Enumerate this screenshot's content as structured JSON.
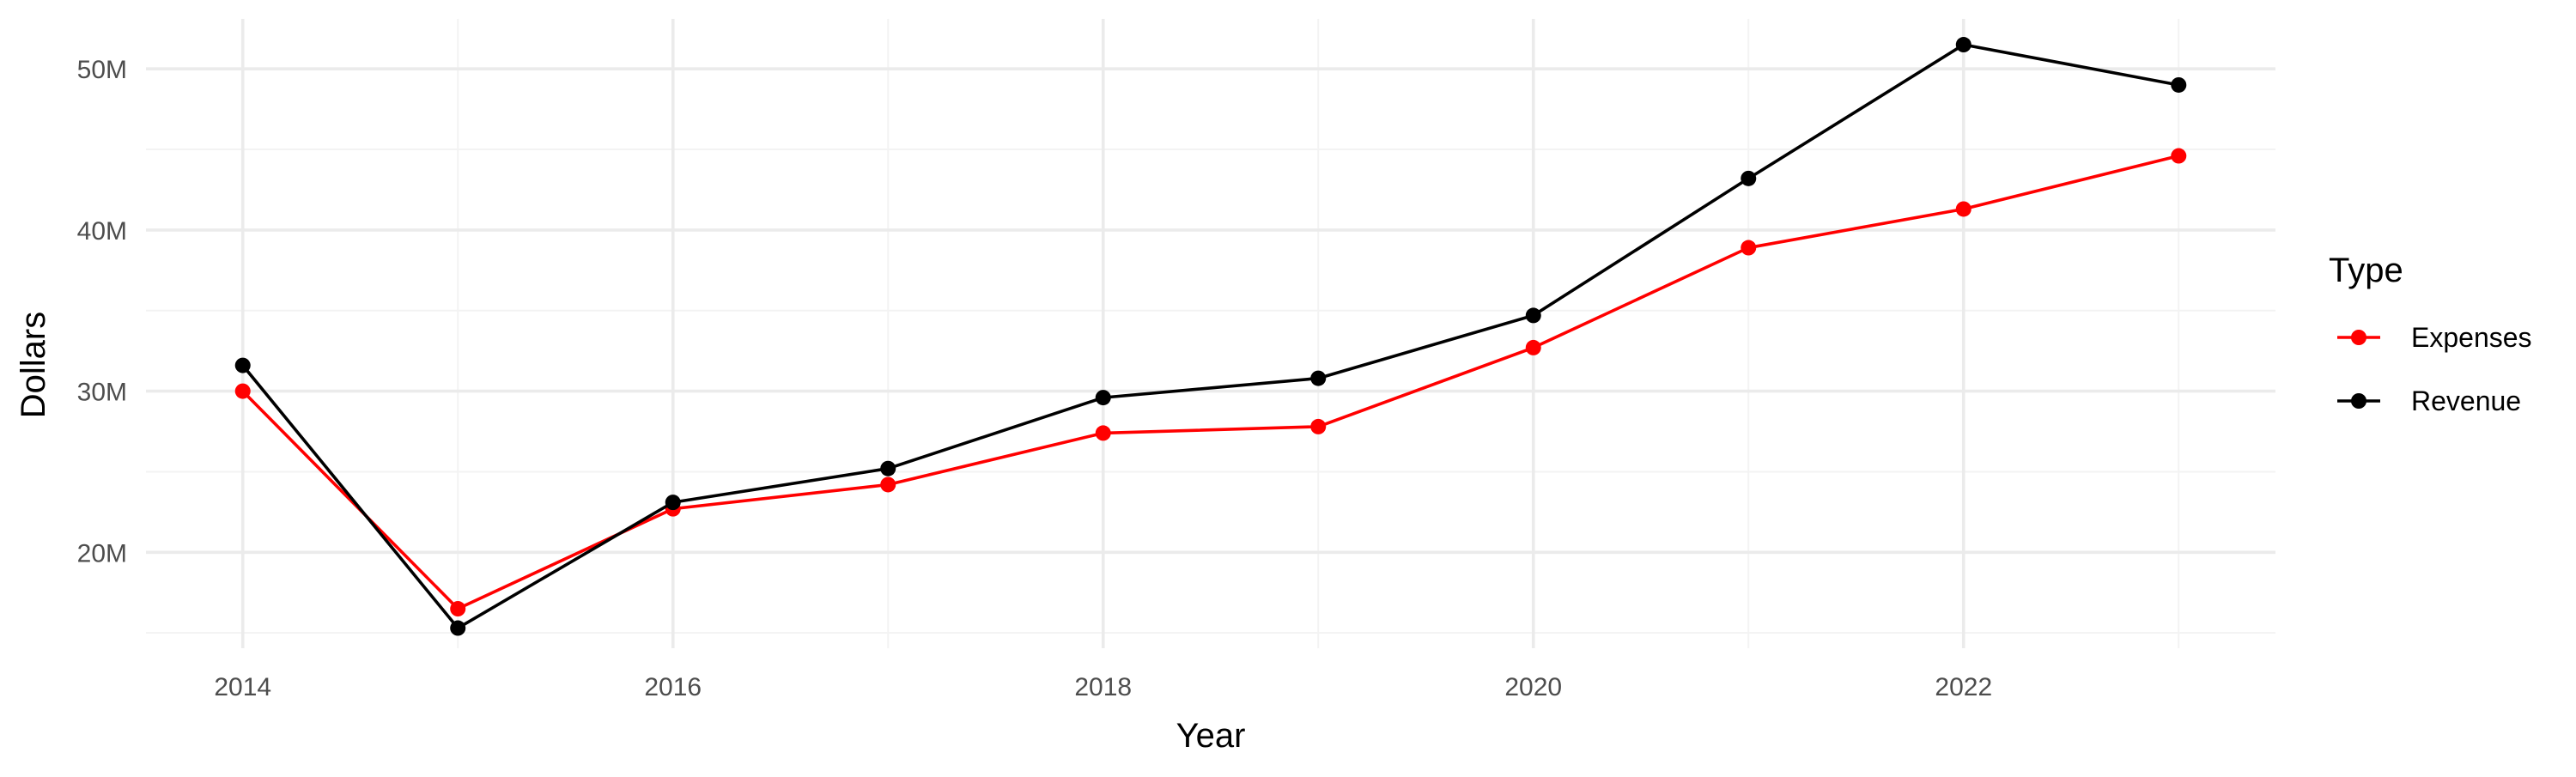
{
  "chart_data": {
    "type": "line",
    "title": "",
    "xlabel": "Year",
    "ylabel": "Dollars",
    "x": [
      2014,
      2015,
      2016,
      2017,
      2018,
      2019,
      2020,
      2021,
      2022,
      2023
    ],
    "series": [
      {
        "name": "Expenses",
        "color": "#ff0000",
        "values": [
          30000000,
          16500000,
          22700000,
          24200000,
          27400000,
          27800000,
          32700000,
          38900000,
          41300000,
          44600000
        ]
      },
      {
        "name": "Revenue",
        "color": "#000000",
        "values": [
          31600000,
          15300000,
          23100000,
          25200000,
          29600000,
          30800000,
          34700000,
          43200000,
          51500000,
          49000000
        ]
      }
    ],
    "xlim": [
      2013.55,
      2023.45
    ],
    "ylim": [
      14050000,
      53100000
    ],
    "x_ticks": [
      2014,
      2016,
      2018,
      2020,
      2022
    ],
    "x_tick_labels": [
      "2014",
      "2016",
      "2018",
      "2020",
      "2022"
    ],
    "y_ticks": [
      20000000,
      30000000,
      40000000,
      50000000
    ],
    "y_tick_labels": [
      "20M",
      "30M",
      "40M",
      "50M"
    ],
    "grid": true,
    "legend": {
      "title": "Type",
      "position": "right",
      "entries": [
        "Expenses",
        "Revenue"
      ]
    }
  }
}
